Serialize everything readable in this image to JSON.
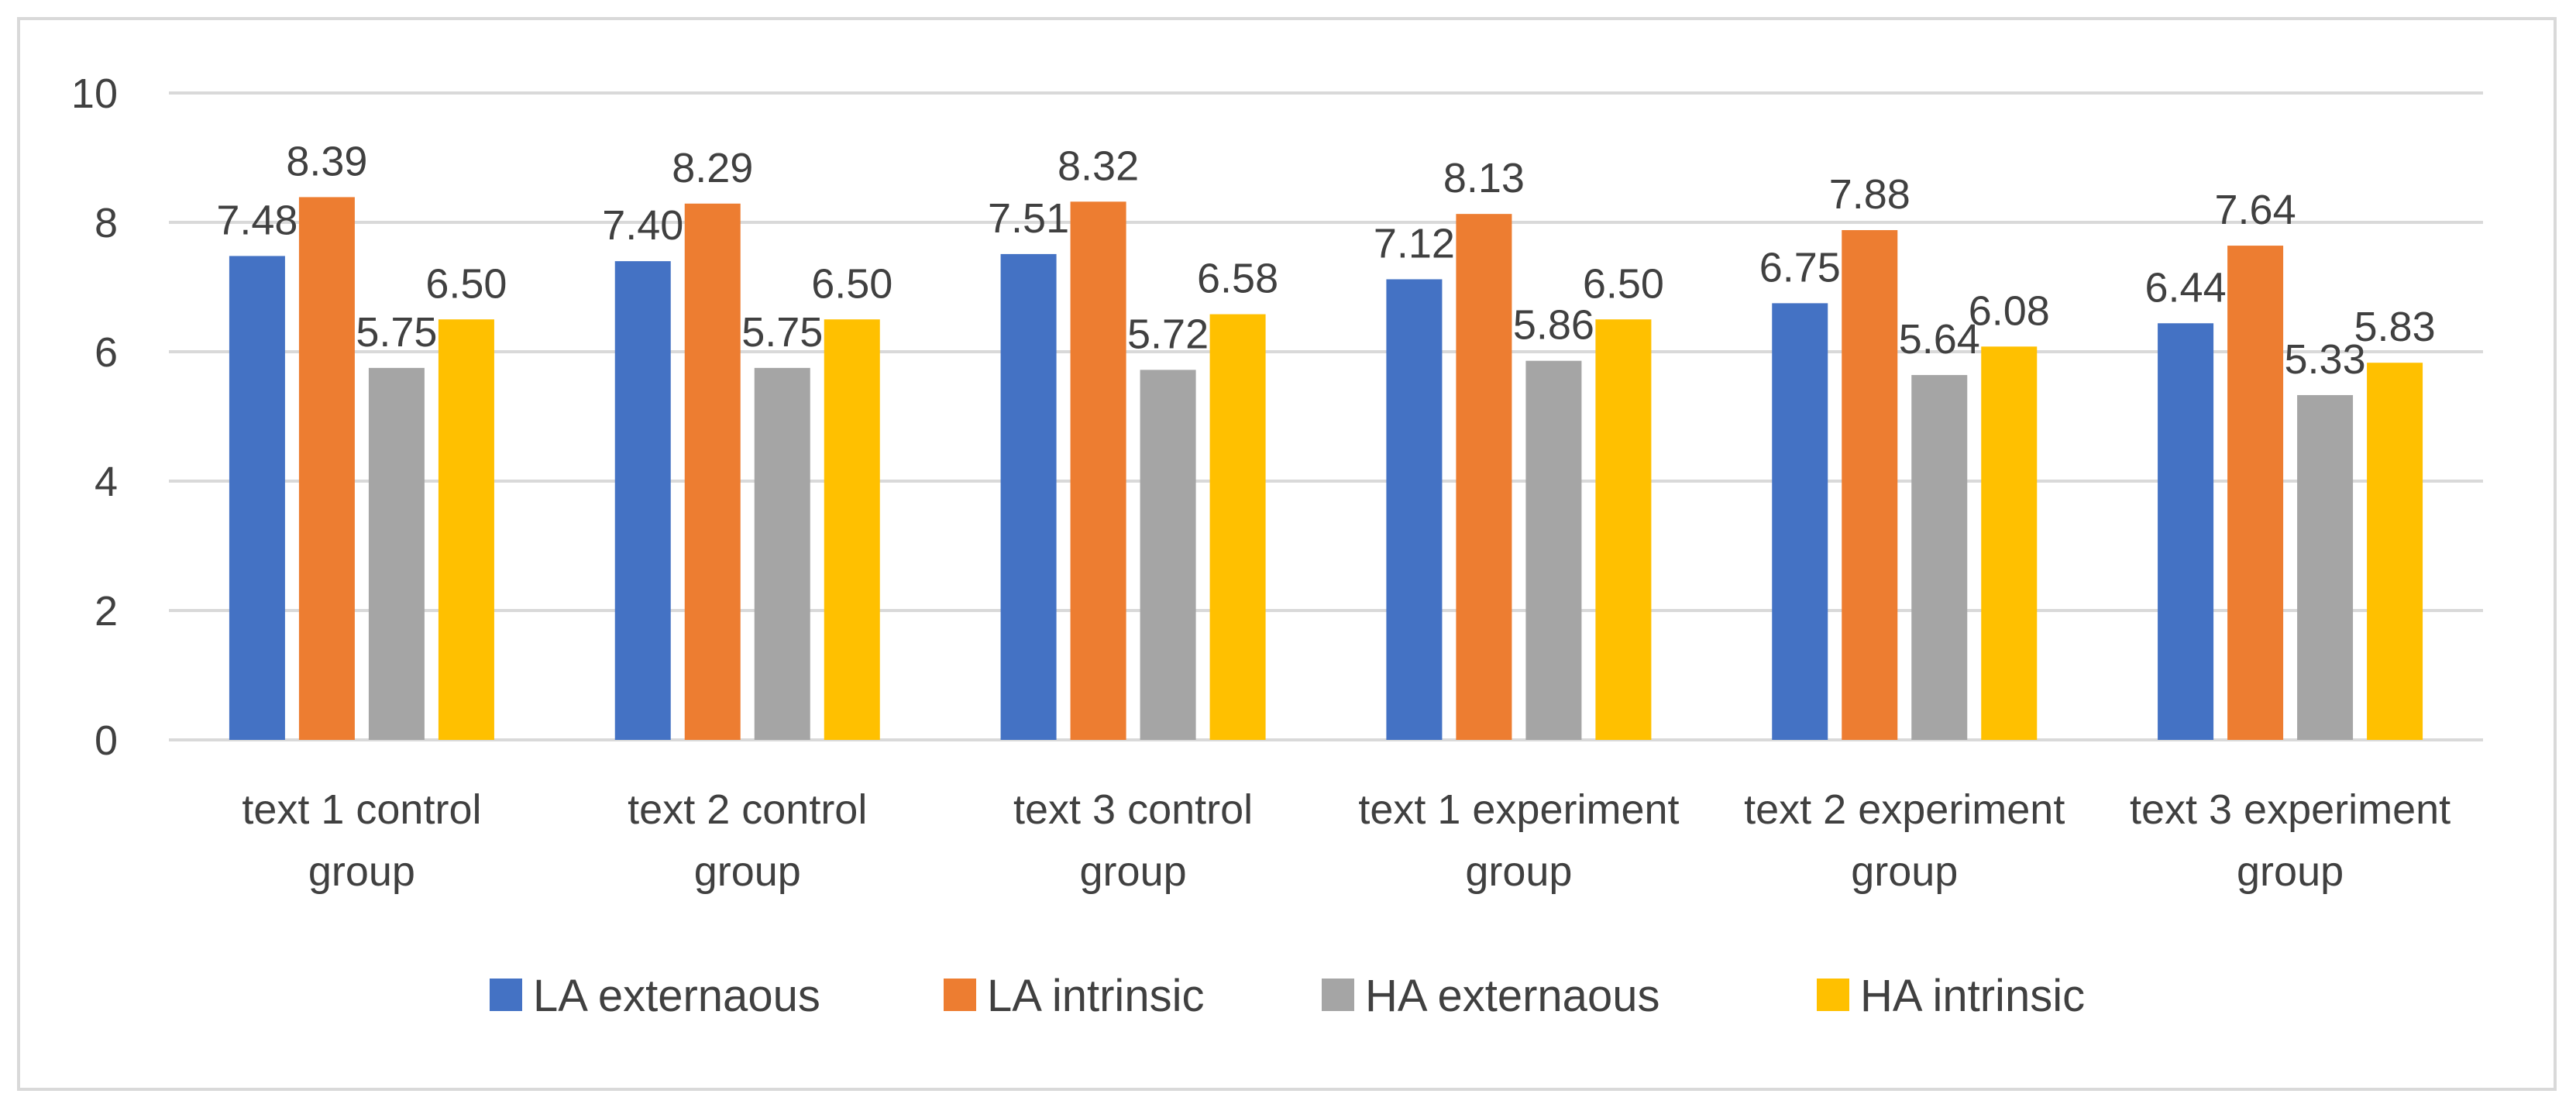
{
  "chart_data": {
    "type": "bar",
    "title": "",
    "xlabel": "",
    "ylabel": "",
    "ylim": [
      0,
      10
    ],
    "yticks": [
      0,
      2,
      4,
      6,
      8,
      10
    ],
    "grid": true,
    "legend_position": "bottom",
    "categories": [
      [
        "text 1 control",
        "group"
      ],
      [
        "text 2 control",
        "group"
      ],
      [
        "text 3 control",
        "group"
      ],
      [
        "text 1 experiment",
        "group"
      ],
      [
        "text 2 experiment",
        "group"
      ],
      [
        "text 3 experiment",
        "group"
      ]
    ],
    "series": [
      {
        "name": "LA externaous",
        "color": "#4472C4",
        "values": [
          7.48,
          7.4,
          7.51,
          7.12,
          6.75,
          6.44
        ],
        "labels": [
          "7.48",
          "7.40",
          "7.51",
          "7.12",
          "6.75",
          "6.44"
        ]
      },
      {
        "name": "LA intrinsic",
        "color": "#ED7D31",
        "values": [
          8.39,
          8.29,
          8.32,
          8.13,
          7.88,
          7.64
        ],
        "labels": [
          "8.39",
          "8.29",
          "8.32",
          "8.13",
          "7.88",
          "7.64"
        ]
      },
      {
        "name": "HA externaous",
        "color": "#A5A5A5",
        "values": [
          5.75,
          5.75,
          5.72,
          5.86,
          5.64,
          5.33
        ],
        "labels": [
          "5.75",
          "5.75",
          "5.72",
          "5.86",
          "5.64",
          "5.33"
        ]
      },
      {
        "name": "HA intrinsic",
        "color": "#FFC000",
        "values": [
          6.5,
          6.5,
          6.58,
          6.5,
          6.08,
          5.83
        ],
        "labels": [
          "6.50",
          "6.50",
          "6.58",
          "6.50",
          "6.08",
          "5.83"
        ]
      }
    ]
  }
}
